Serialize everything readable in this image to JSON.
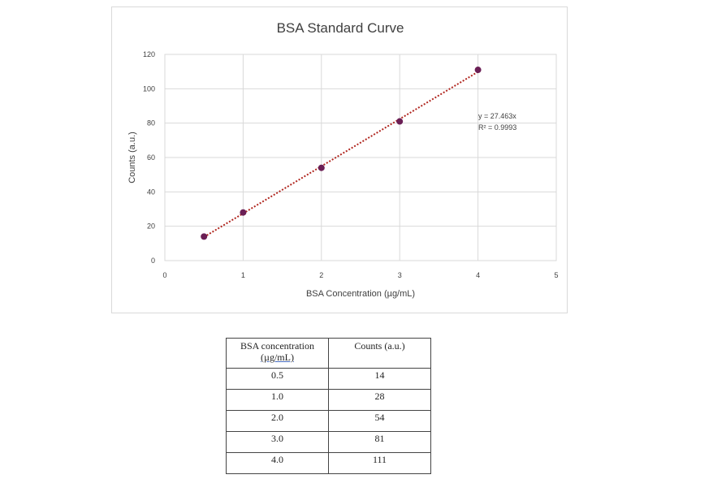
{
  "chart_data": {
    "type": "scatter",
    "title": "BSA Standard Curve",
    "xlabel": "BSA Concentration (µg/mL)",
    "ylabel": "Counts (a.u.)",
    "xlim": [
      0,
      5
    ],
    "ylim": [
      0,
      120
    ],
    "x_ticks": [
      "0",
      "1",
      "2",
      "3",
      "4",
      "5"
    ],
    "y_ticks": [
      "0",
      "20",
      "40",
      "60",
      "80",
      "100",
      "120"
    ],
    "grid": true,
    "series": [
      {
        "x": [
          0.5,
          1.0,
          2.0,
          3.0,
          4.0
        ],
        "y": [
          14,
          28,
          54,
          81,
          111
        ],
        "color": "#6b1f55"
      }
    ],
    "trendline": {
      "type": "linear",
      "slope": 27.463,
      "intercept": 0,
      "x_range": [
        0.5,
        4.0
      ],
      "color": "#b0261f",
      "equation": "y = 27.463x",
      "r_squared": "R² = 0.9993"
    }
  },
  "table": {
    "headers": [
      "BSA concentration (µg/mL)",
      "Counts (a.u.)"
    ],
    "header1_line1": "BSA concentration",
    "header1_line2": "(µg/mL)",
    "header2": "Counts (a.u.)",
    "rows": [
      [
        "0.5",
        "14"
      ],
      [
        "1.0",
        "28"
      ],
      [
        "2.0",
        "54"
      ],
      [
        "3.0",
        "81"
      ],
      [
        "4.0",
        "111"
      ]
    ]
  }
}
